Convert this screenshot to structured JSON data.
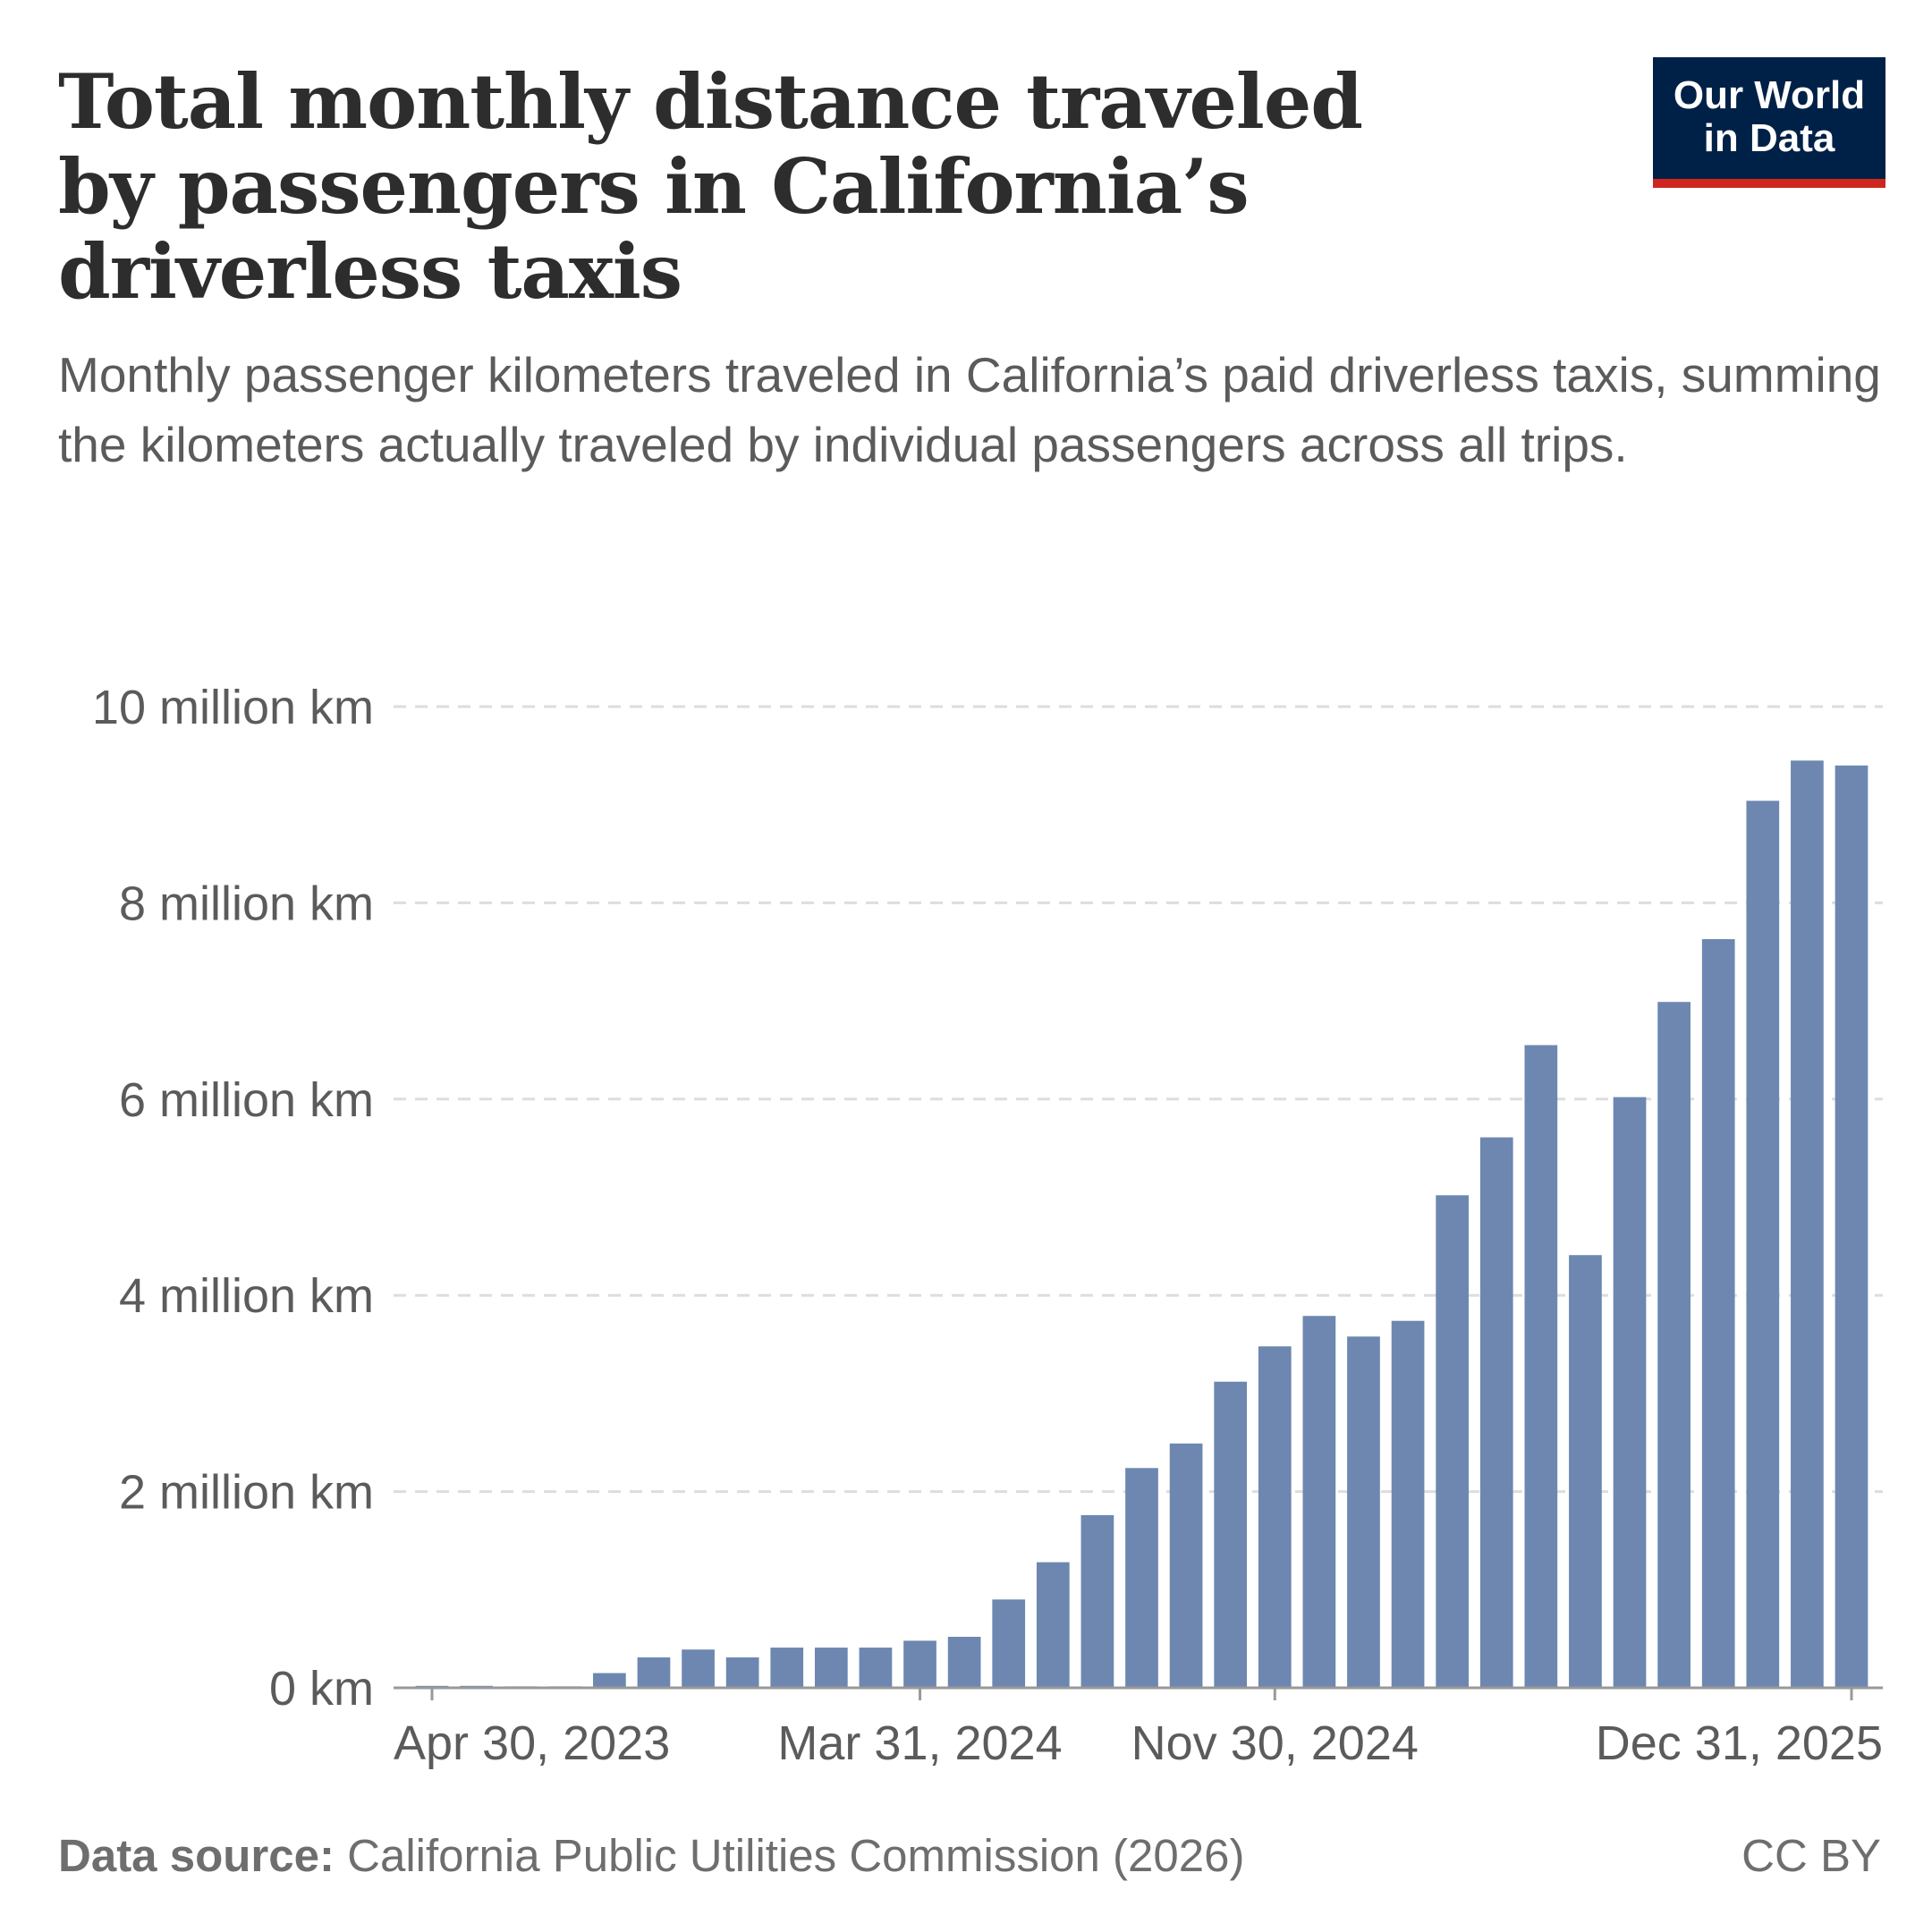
{
  "header": {
    "title": "Total monthly distance traveled by passengers in California’s driverless taxis",
    "subtitle": "Monthly passenger kilometers traveled in California’s paid driverless taxis, summing the kilometers actually traveled by individual passengers across all trips.",
    "logo_line1": "Our World",
    "logo_line2": "in Data"
  },
  "footer": {
    "source_label": "Data source:",
    "source_text": "California Public Utilities Commission (2026)",
    "license": "CC BY"
  },
  "colors": {
    "bar": "#6d87b0",
    "grid": "#dddddd",
    "axis": "#999999",
    "logo_background": "#002147",
    "logo_accent": "#ce261e"
  },
  "chart_data": {
    "type": "bar",
    "unit": "km",
    "categories": [
      "Apr 2023",
      "May 2023",
      "Jun 2023",
      "Jul 2023",
      "Aug 2023",
      "Sep 2023",
      "Oct 2023",
      "Nov 2023",
      "Dec 2023",
      "Jan 2024",
      "Feb 2024",
      "Mar 2024",
      "Apr 2024",
      "May 2024",
      "Jun 2024",
      "Jul 2024",
      "Aug 2024",
      "Sep 2024",
      "Oct 2024",
      "Nov 2024",
      "Dec 2024",
      "Jan 2025",
      "Feb 2025",
      "Mar 2025",
      "Apr 2025",
      "May 2025",
      "Jun 2025",
      "Jul 2025",
      "Aug 2025",
      "Sep 2025",
      "Oct 2025",
      "Nov 2025",
      "Dec 2025"
    ],
    "values": [
      20000,
      20000,
      15000,
      15000,
      150000,
      310000,
      390000,
      310000,
      410000,
      410000,
      410000,
      480000,
      520000,
      900000,
      1280000,
      1760000,
      2240000,
      2490000,
      3120000,
      3480000,
      3790000,
      3580000,
      3740000,
      5020000,
      5610000,
      6550000,
      4410000,
      6020000,
      6990000,
      7630000,
      9040000,
      9450000,
      9400000
    ],
    "y_ticks": [
      0,
      2000000,
      4000000,
      6000000,
      8000000,
      10000000
    ],
    "y_tick_labels": [
      "0 km",
      "2 million km",
      "4 million km",
      "6 million km",
      "8 million km",
      "10 million km"
    ],
    "ylim": [
      0,
      10000000
    ],
    "x_ticks": [
      {
        "index": 0,
        "label": "Apr 30, 2023"
      },
      {
        "index": 11,
        "label": "Mar 31, 2024"
      },
      {
        "index": 19,
        "label": "Nov 30, 2024"
      },
      {
        "index": 32,
        "label": "Dec 31, 2025"
      }
    ],
    "grid": true,
    "legend": "none"
  }
}
